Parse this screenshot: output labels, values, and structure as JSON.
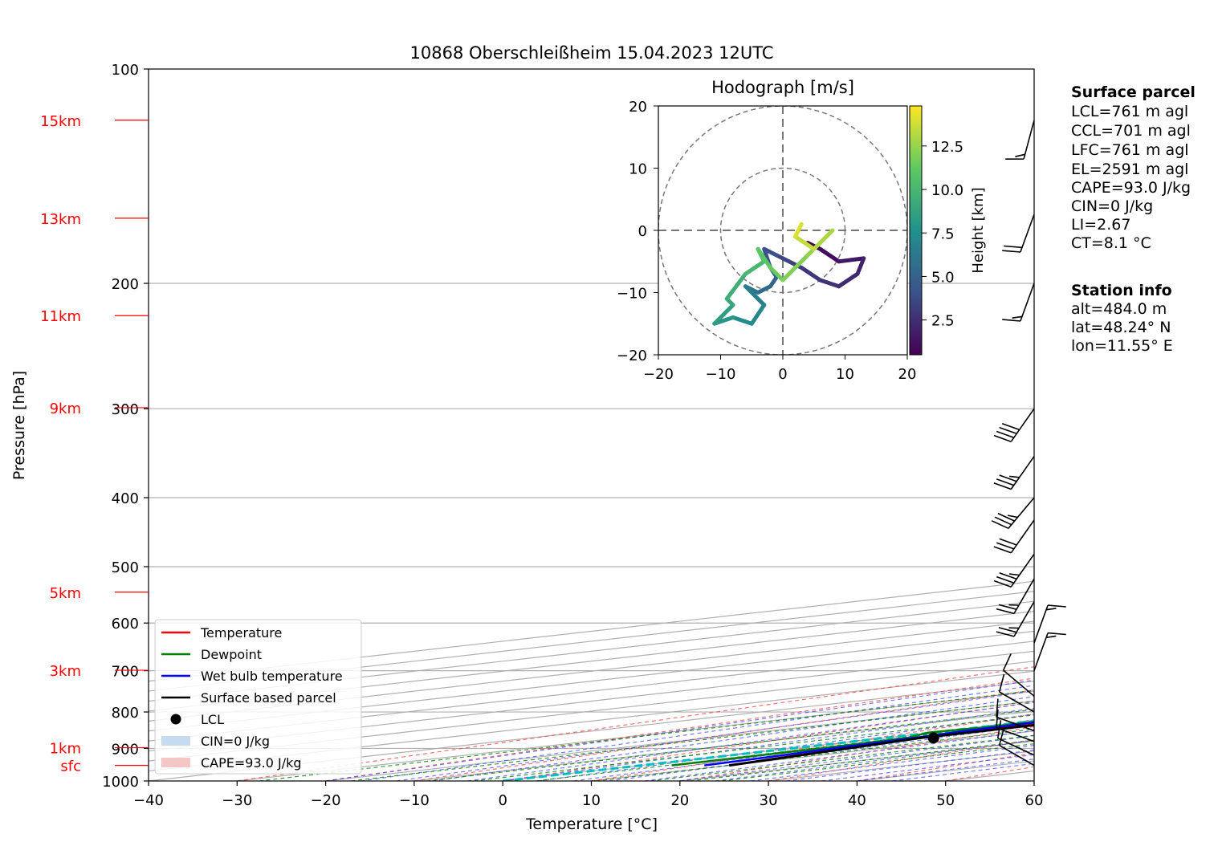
{
  "title": "10868 Oberschleißheim 15.04.2023 12UTC",
  "chart_data": {
    "type": "line",
    "title": "10868 Oberschleißheim 15.04.2023 12UTC",
    "xlabel": "Temperature [°C]",
    "ylabel": "Pressure [hPa]",
    "xlim": [
      -40,
      60
    ],
    "ylim": [
      1000,
      100
    ],
    "y_scale": "log",
    "x_ticks": [
      -40,
      -30,
      -20,
      -10,
      0,
      10,
      20,
      30,
      40,
      50,
      60
    ],
    "y_ticks": [
      100,
      200,
      300,
      400,
      500,
      600,
      700,
      800,
      900,
      1000
    ],
    "grid": true,
    "legend_position": "lower-left",
    "height_labels": [
      {
        "label": "15km",
        "p": 118
      },
      {
        "label": "13km",
        "p": 162
      },
      {
        "label": "11km",
        "p": 222
      },
      {
        "label": "9km",
        "p": 299
      },
      {
        "label": "5km",
        "p": 543
      },
      {
        "label": "3km",
        "p": 699
      },
      {
        "label": "1km",
        "p": 898
      },
      {
        "label": "sfc",
        "p": 951
      }
    ],
    "series": [
      {
        "name": "Temperature",
        "color": "#ff0000",
        "points": [
          [
            951,
            10.0
          ],
          [
            920,
            7.5
          ],
          [
            900,
            5.8
          ],
          [
            870,
            3.8
          ],
          [
            850,
            2.5
          ],
          [
            800,
            0.8
          ],
          [
            770,
            0.3
          ],
          [
            745,
            0.3
          ],
          [
            720,
            2.0
          ],
          [
            700,
            1.5
          ],
          [
            680,
            1.5
          ],
          [
            650,
            0.8
          ],
          [
            620,
            -0.8
          ],
          [
            600,
            -1.8
          ],
          [
            590,
            -1.5
          ],
          [
            570,
            -2.0
          ],
          [
            550,
            -3.5
          ],
          [
            520,
            -5.5
          ],
          [
            500,
            -6.5
          ],
          [
            480,
            -6.8
          ],
          [
            460,
            -7.0
          ],
          [
            440,
            -7.3
          ],
          [
            420,
            -8.5
          ],
          [
            400,
            -9.5
          ],
          [
            380,
            -11.0
          ],
          [
            350,
            -12.8
          ],
          [
            330,
            -14.5
          ],
          [
            310,
            -15.8
          ],
          [
            290,
            -16.2
          ],
          [
            270,
            -16.8
          ],
          [
            260,
            -14.8
          ],
          [
            255,
            -14.0
          ],
          [
            245,
            -14.0
          ],
          [
            230,
            -13.0
          ],
          [
            225,
            -11.5
          ],
          [
            215,
            -9.5
          ],
          [
            205,
            -7.2
          ],
          [
            195,
            -5.5
          ],
          [
            180,
            -3.5
          ],
          [
            170,
            -1.8
          ],
          [
            160,
            0.5
          ],
          [
            150,
            2.5
          ],
          [
            140,
            4.0
          ],
          [
            130,
            6.0
          ],
          [
            122,
            7.5
          ],
          [
            117,
            9.5
          ]
        ]
      },
      {
        "name": "Dewpoint",
        "color": "#008000",
        "points": [
          [
            951,
            3.5
          ],
          [
            900,
            3.3
          ],
          [
            870,
            2.5
          ],
          [
            855,
            -0.5
          ],
          [
            840,
            0.8
          ],
          [
            820,
            0.5
          ],
          [
            800,
            -1.5
          ],
          [
            785,
            -2.5
          ],
          [
            770,
            -2.5
          ],
          [
            755,
            -4.0
          ],
          [
            740,
            -2.0
          ],
          [
            720,
            -0.5
          ],
          [
            700,
            0.5
          ],
          [
            680,
            -0.8
          ],
          [
            650,
            -1.8
          ],
          [
            620,
            -2.8
          ],
          [
            605,
            -3.0
          ],
          [
            600,
            -3.0
          ],
          [
            595,
            -17.0
          ],
          [
            570,
            -17.5
          ],
          [
            550,
            -18.0
          ],
          [
            520,
            -17.0
          ],
          [
            500,
            -18.5
          ],
          [
            480,
            -17.5
          ],
          [
            470,
            -15.0
          ],
          [
            460,
            -17.0
          ],
          [
            440,
            -16.0
          ],
          [
            420,
            -16.5
          ],
          [
            410,
            -13.0
          ],
          [
            400,
            -10.0
          ],
          [
            390,
            -10.0
          ],
          [
            370,
            -11.5
          ],
          [
            350,
            -12.0
          ],
          [
            330,
            -12.5
          ],
          [
            315,
            -11.0
          ],
          [
            300,
            -14.0
          ],
          [
            290,
            -13.5
          ],
          [
            280,
            -14.5
          ],
          [
            270,
            -17.5
          ],
          [
            262,
            -16.0
          ],
          [
            255,
            -18.5
          ],
          [
            240,
            -18.0
          ],
          [
            230,
            -20.0
          ],
          [
            225,
            -21.0
          ],
          [
            218,
            -23.0
          ],
          [
            210,
            -24.0
          ],
          [
            200,
            -24.5
          ],
          [
            190,
            -25.0
          ],
          [
            175,
            -25.0
          ],
          [
            160,
            -25.5
          ],
          [
            145,
            -26.5
          ],
          [
            130,
            -26.5
          ],
          [
            118,
            -27.5
          ]
        ]
      },
      {
        "name": "Wet bulb temperature",
        "color": "#0000ff",
        "points": [
          [
            951,
            7.2
          ],
          [
            920,
            5.8
          ],
          [
            900,
            4.6
          ],
          [
            870,
            3.3
          ],
          [
            850,
            2.0
          ],
          [
            820,
            1.2
          ],
          [
            800,
            0.3
          ],
          [
            770,
            -0.5
          ],
          [
            745,
            -0.3
          ],
          [
            720,
            -0.6
          ],
          [
            700,
            0.5
          ],
          [
            680,
            0.2
          ],
          [
            650,
            -0.2
          ],
          [
            620,
            -1.5
          ],
          [
            600,
            -2.5
          ],
          [
            590,
            -2.8
          ],
          [
            570,
            -4.0
          ],
          [
            550,
            -5.0
          ],
          [
            520,
            -6.5
          ],
          [
            500,
            -7.5
          ],
          [
            480,
            -7.7
          ],
          [
            460,
            -7.8
          ],
          [
            440,
            -8.0
          ],
          [
            420,
            -9.3
          ],
          [
            400,
            -10.3
          ],
          [
            380,
            -11.8
          ],
          [
            350,
            -13.3
          ],
          [
            330,
            -14.8
          ],
          [
            310,
            -16.2
          ],
          [
            290,
            -16.6
          ],
          [
            270,
            -17.2
          ],
          [
            260,
            -15.2
          ],
          [
            255,
            -14.4
          ],
          [
            245,
            -14.4
          ],
          [
            230,
            -13.4
          ],
          [
            225,
            -11.9
          ],
          [
            215,
            -9.9
          ],
          [
            205,
            -7.6
          ],
          [
            195,
            -5.9
          ],
          [
            180,
            -3.9
          ],
          [
            170,
            -2.2
          ],
          [
            160,
            0.1
          ],
          [
            150,
            2.1
          ],
          [
            140,
            3.6
          ],
          [
            130,
            5.6
          ],
          [
            122,
            7.1
          ],
          [
            117,
            9.0
          ]
        ]
      },
      {
        "name": "Surface based parcel",
        "color": "#000000",
        "points": [
          [
            951,
            10.0
          ],
          [
            870,
            4.0
          ],
          [
            850,
            4.1
          ],
          [
            800,
            3.7
          ],
          [
            750,
            3.3
          ],
          [
            700,
            2.8
          ],
          [
            650,
            1.8
          ],
          [
            600,
            0.5
          ],
          [
            550,
            -0.8
          ],
          [
            500,
            -2.2
          ],
          [
            450,
            -4.4
          ],
          [
            400,
            -7.5
          ],
          [
            350,
            -11.8
          ],
          [
            300,
            -17.5
          ],
          [
            250,
            -25.0
          ],
          [
            200,
            -34.5
          ],
          [
            170,
            -40.0
          ]
        ]
      }
    ],
    "lcl": {
      "name": "LCL",
      "p": 870,
      "t": 5.5
    },
    "cin_label": "CIN=0 J/kg",
    "cape_label": "CAPE=93.0 J/kg",
    "freezing_level_line": "0 °C isotherm",
    "wind_barbs": [
      {
        "p": 951,
        "speed_kt": 10,
        "dir": 300
      },
      {
        "p": 920,
        "speed_kt": 10,
        "dir": 295
      },
      {
        "p": 880,
        "speed_kt": 10,
        "dir": 290
      },
      {
        "p": 850,
        "speed_kt": 10,
        "dir": 290
      },
      {
        "p": 800,
        "speed_kt": 10,
        "dir": 300
      },
      {
        "p": 760,
        "speed_kt": 10,
        "dir": 310
      },
      {
        "p": 700,
        "speed_kt": 15,
        "dir": 20
      },
      {
        "p": 640,
        "speed_kt": 15,
        "dir": 20
      },
      {
        "p": 560,
        "speed_kt": 25,
        "dir": 210
      },
      {
        "p": 520,
        "speed_kt": 25,
        "dir": 210
      },
      {
        "p": 480,
        "speed_kt": 35,
        "dir": 215
      },
      {
        "p": 430,
        "speed_kt": 30,
        "dir": 215
      },
      {
        "p": 400,
        "speed_kt": 35,
        "dir": 220
      },
      {
        "p": 350,
        "speed_kt": 35,
        "dir": 215
      },
      {
        "p": 300,
        "speed_kt": 40,
        "dir": 215
      },
      {
        "p": 200,
        "speed_kt": 15,
        "dir": 200
      },
      {
        "p": 160,
        "speed_kt": 20,
        "dir": 200
      },
      {
        "p": 118,
        "speed_kt": 15,
        "dir": 195
      }
    ]
  },
  "hodograph": {
    "title": "Hodograph [m/s]",
    "xlim": [
      -20,
      20
    ],
    "ylim": [
      -20,
      20
    ],
    "x_ticks": [
      -20,
      -10,
      0,
      10,
      20
    ],
    "y_ticks": [
      -20,
      -10,
      0,
      10,
      20
    ],
    "rings": [
      10,
      20
    ],
    "colorbar_label": "Height [km]",
    "colorbar_ticks": [
      "2.5",
      "5.0",
      "7.5",
      "10.0",
      "12.5"
    ],
    "colorbar_range": [
      0.5,
      14.8
    ],
    "trace": [
      [
        4,
        -2,
        0.5
      ],
      [
        6,
        -3,
        1.0
      ],
      [
        9,
        -5,
        1.5
      ],
      [
        13,
        -4.5,
        2.0
      ],
      [
        12,
        -7,
        2.3
      ],
      [
        9,
        -9,
        2.6
      ],
      [
        6,
        -8,
        2.9
      ],
      [
        3,
        -6,
        3.3
      ],
      [
        1,
        -5,
        3.6
      ],
      [
        -1,
        -4,
        4.0
      ],
      [
        -3,
        -3,
        4.2
      ],
      [
        -2,
        -6,
        4.5
      ],
      [
        -1,
        -7.5,
        5.0
      ],
      [
        -2,
        -9,
        5.5
      ],
      [
        -4,
        -10,
        6.0
      ],
      [
        -6,
        -9,
        6.5
      ],
      [
        -3,
        -12,
        7.0
      ],
      [
        -5,
        -15,
        7.5
      ],
      [
        -8,
        -14,
        8.0
      ],
      [
        -11,
        -15,
        8.5
      ],
      [
        -8,
        -12,
        9.0
      ],
      [
        -9,
        -11,
        9.5
      ],
      [
        -6,
        -7,
        10.0
      ],
      [
        -3,
        -5,
        10.5
      ],
      [
        -4,
        -3,
        11.0
      ],
      [
        -2,
        -6,
        11.5
      ],
      [
        0,
        -8,
        12.0
      ],
      [
        4,
        -4,
        12.5
      ],
      [
        8,
        0,
        13.0
      ],
      [
        5,
        -3,
        13.5
      ],
      [
        2,
        -1,
        14.0
      ],
      [
        3,
        1,
        14.5
      ]
    ]
  },
  "surface_parcel": {
    "title": "Surface parcel",
    "lines": [
      "LCL=761 m agl",
      "CCL=701 m agl",
      "LFC=761 m agl",
      "EL=2591 m agl",
      "CAPE=93.0 J/kg",
      "CIN=0 J/kg",
      "LI=2.67",
      "CT=8.1 °C"
    ]
  },
  "station_info": {
    "title": "Station info",
    "lines": [
      "alt=484.0 m",
      "lat=48.24° N",
      "lon=11.55° E"
    ]
  },
  "legend": [
    {
      "label": "Temperature",
      "kind": "line",
      "color": "#ff0000"
    },
    {
      "label": "Dewpoint",
      "kind": "line",
      "color": "#008000"
    },
    {
      "label": "Wet bulb temperature",
      "kind": "line",
      "color": "#0000ff"
    },
    {
      "label": "Surface based parcel",
      "kind": "line",
      "color": "#000000"
    },
    {
      "label": "LCL",
      "kind": "dot",
      "color": "#000000"
    },
    {
      "label": "CIN=0 J/kg",
      "kind": "patch",
      "color": "#c6dbef"
    },
    {
      "label": "CAPE=93.0 J/kg",
      "kind": "patch",
      "color": "#f5c6c6"
    }
  ]
}
